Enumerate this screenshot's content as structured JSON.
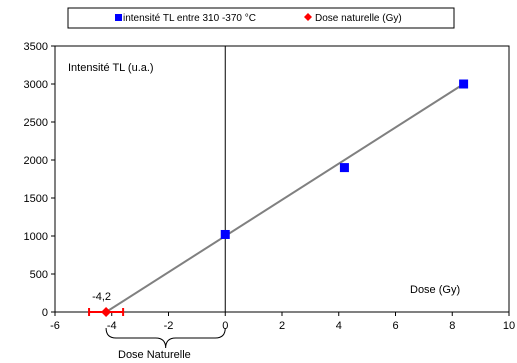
{
  "chart_data": {
    "type": "scatter",
    "legend_position": "top",
    "grid": false,
    "xlim": [
      -6,
      10
    ],
    "ylim": [
      0,
      3500
    ],
    "x_ticks": [
      -6,
      -4,
      -2,
      0,
      2,
      4,
      6,
      8,
      10
    ],
    "y_ticks": [
      0,
      500,
      1000,
      1500,
      2000,
      2500,
      3000,
      3500
    ],
    "ylabel": "Intensité TL (u.a.)",
    "xlabel": "Dose (Gy)",
    "series": [
      {
        "name": "intensité TL entre 310 -370 °C",
        "marker": "square",
        "color": "#0000ff",
        "points": [
          {
            "x": 0,
            "y": 1020
          },
          {
            "x": 4.2,
            "y": 1900
          },
          {
            "x": 8.4,
            "y": 3000
          }
        ]
      },
      {
        "name": "Dose naturelle (Gy)",
        "marker": "diamond",
        "color": "#ff0000",
        "points": [
          {
            "x": -4.2,
            "y": 0,
            "error_x": 0.6
          }
        ]
      }
    ],
    "fit_line": {
      "color": "#808080",
      "from": {
        "x": -4.2,
        "y": 0
      },
      "to": {
        "x": 8.4,
        "y": 3000
      }
    },
    "annotations": {
      "natural_dose_value": "-4,2",
      "brace_label": "Dose Naturelle"
    }
  }
}
